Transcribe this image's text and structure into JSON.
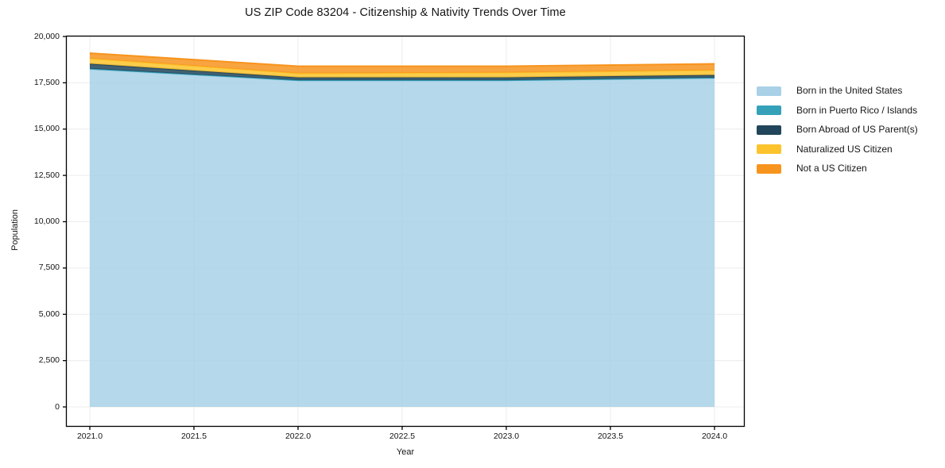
{
  "title": "US ZIP Code 83204 - Citizenship & Nativity Trends Over Time",
  "chart_data": {
    "type": "area",
    "stacked": true,
    "title": "US ZIP Code 83204 - Citizenship & Nativity Trends Over Time",
    "xlabel": "Year",
    "ylabel": "Population",
    "x": [
      2021,
      2022,
      2023,
      2024
    ],
    "series": [
      {
        "name": "Born in the United States",
        "color": "#a8d1e7",
        "values": [
          18230,
          17620,
          17620,
          17750
        ]
      },
      {
        "name": "Born in Puerto Rico / Islands",
        "color": "#35a1b9",
        "values": [
          30,
          20,
          20,
          20
        ]
      },
      {
        "name": "Born Abroad of US Parent(s)",
        "color": "#21455a",
        "values": [
          270,
          150,
          150,
          150
        ]
      },
      {
        "name": "Naturalized US Citizen",
        "color": "#fcc32c",
        "values": [
          280,
          220,
          260,
          260
        ]
      },
      {
        "name": "Not a US Citizen",
        "color": "#f7941e",
        "values": [
          290,
          385,
          345,
          340
        ]
      }
    ],
    "totals": [
      19100,
      18395,
      18395,
      18520
    ],
    "x_ticks": [
      2021.0,
      2021.5,
      2022.0,
      2022.5,
      2023.0,
      2023.5,
      2024.0
    ],
    "x_tick_labels": [
      "2021.0",
      "2021.5",
      "2022.0",
      "2022.5",
      "2023.0",
      "2023.5",
      "2024.0"
    ],
    "y_ticks": [
      0,
      2500,
      5000,
      7500,
      10000,
      12500,
      15000,
      17500,
      20000
    ],
    "y_tick_labels": [
      "0",
      "2,500",
      "5,000",
      "7,500",
      "10,000",
      "12,500",
      "15,000",
      "17,500",
      "20,000"
    ],
    "xlim": [
      2021,
      2024
    ],
    "ylim": [
      0,
      20000
    ],
    "grid": true,
    "grid_color": "#ececec",
    "axis_color": "#000000",
    "background_color": "#ffffff",
    "legend_position": "right",
    "fill_opacity": 0.85
  }
}
